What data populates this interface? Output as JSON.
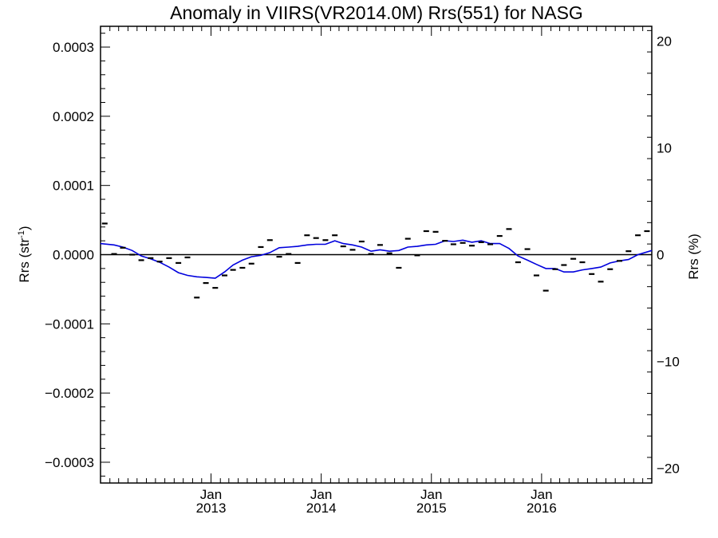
{
  "chart_data": {
    "type": "scatter",
    "title": "Anomaly in VIIRS(VR2014.0M) Rrs(551) for NASG",
    "ylabel_left_base": "Rrs (str",
    "ylabel_left_sup": "-1",
    "ylabel_left_close": ")",
    "ylabel_right": "Rrs (%)",
    "xlabel": "",
    "xlim": [
      "2012-01-01",
      "2016-12-31"
    ],
    "ylim_left": [
      -0.00033,
      0.00033
    ],
    "ylim_right": [
      -21.4,
      21.4
    ],
    "left_ticks": [
      {
        "value": 0.0003,
        "label": "0.0003"
      },
      {
        "value": 0.0002,
        "label": "0.0002"
      },
      {
        "value": 0.0001,
        "label": "0.0001"
      },
      {
        "value": 0.0,
        "label": "0.0000"
      },
      {
        "value": -0.0001,
        "label": "−0.0001"
      },
      {
        "value": -0.0002,
        "label": "−0.0002"
      },
      {
        "value": -0.0003,
        "label": "−0.0003"
      }
    ],
    "right_ticks": [
      {
        "value": 20,
        "label": "20"
      },
      {
        "value": 10,
        "label": "10"
      },
      {
        "value": 0,
        "label": "0"
      },
      {
        "value": -10,
        "label": "−10"
      },
      {
        "value": -20,
        "label": "−20"
      }
    ],
    "x_ticks": [
      {
        "date": "2013-01-01",
        "month": "Jan",
        "year": "2013"
      },
      {
        "date": "2014-01-01",
        "month": "Jan",
        "year": "2014"
      },
      {
        "date": "2015-01-01",
        "month": "Jan",
        "year": "2015"
      },
      {
        "date": "2016-01-01",
        "month": "Jan",
        "year": "2016"
      }
    ],
    "zero_line": 0,
    "series": [
      {
        "kind": "monthly-anomaly",
        "color": "#000000",
        "x": [
          "2012-01",
          "2012-02",
          "2012-03",
          "2012-04",
          "2012-05",
          "2012-06",
          "2012-07",
          "2012-08",
          "2012-09",
          "2012-10",
          "2012-11",
          "2012-12",
          "2013-01",
          "2013-02",
          "2013-03",
          "2013-04",
          "2013-05",
          "2013-06",
          "2013-07",
          "2013-08",
          "2013-09",
          "2013-10",
          "2013-11",
          "2013-12",
          "2014-01",
          "2014-02",
          "2014-03",
          "2014-04",
          "2014-05",
          "2014-06",
          "2014-07",
          "2014-08",
          "2014-09",
          "2014-10",
          "2014-11",
          "2014-12",
          "2015-01",
          "2015-02",
          "2015-03",
          "2015-04",
          "2015-05",
          "2015-06",
          "2015-07",
          "2015-08",
          "2015-09",
          "2015-10",
          "2015-11",
          "2015-12",
          "2016-01",
          "2016-02",
          "2016-03",
          "2016-04",
          "2016-05",
          "2016-06",
          "2016-07",
          "2016-08",
          "2016-09",
          "2016-10",
          "2016-11",
          "2016-12"
        ],
        "y": [
          4.5e-05,
          1e-06,
          1e-05,
          0.0,
          -8e-06,
          -5e-06,
          -1e-05,
          -5e-06,
          -1.2e-05,
          -4e-06,
          -6.2e-05,
          -4.1e-05,
          -4.8e-05,
          -3e-05,
          -2.2e-05,
          -1.9e-05,
          -1.3e-05,
          1.1e-05,
          2.1e-05,
          -3e-06,
          1e-06,
          -1.2e-05,
          2.8e-05,
          2.4e-05,
          2.1e-05,
          2.8e-05,
          1.2e-05,
          7e-06,
          1.9e-05,
          1e-06,
          1.4e-05,
          2e-06,
          -1.9e-05,
          2.3e-05,
          -1e-06,
          3.4e-05,
          3.3e-05,
          2e-05,
          1.5e-05,
          1.7e-05,
          1.3e-05,
          1.8e-05,
          1.5e-05,
          2.7e-05,
          3.7e-05,
          -1.1e-05,
          8e-06,
          -3e-05,
          -5.2e-05,
          -2.1e-05,
          -1.5e-05,
          -6e-06,
          -1.1e-05,
          -2.8e-05,
          -3.9e-05,
          -2.1e-05,
          -9e-06,
          5e-06,
          2.8e-05,
          3.4e-05
        ]
      },
      {
        "kind": "running-mean",
        "color": "#0000dd",
        "x": [
          "2012-01",
          "2012-02",
          "2012-03",
          "2012-04",
          "2012-05",
          "2012-06",
          "2012-07",
          "2012-08",
          "2012-09",
          "2012-10",
          "2012-11",
          "2012-12",
          "2013-01",
          "2013-02",
          "2013-03",
          "2013-04",
          "2013-05",
          "2013-06",
          "2013-07",
          "2013-08",
          "2013-09",
          "2013-10",
          "2013-11",
          "2013-12",
          "2014-01",
          "2014-02",
          "2014-03",
          "2014-04",
          "2014-05",
          "2014-06",
          "2014-07",
          "2014-08",
          "2014-09",
          "2014-10",
          "2014-11",
          "2014-12",
          "2015-01",
          "2015-02",
          "2015-03",
          "2015-04",
          "2015-05",
          "2015-06",
          "2015-07",
          "2015-08",
          "2015-09",
          "2015-10",
          "2015-11",
          "2015-12",
          "2016-01",
          "2016-02",
          "2016-03",
          "2016-04",
          "2016-05",
          "2016-06",
          "2016-07",
          "2016-08",
          "2016-09",
          "2016-10",
          "2016-11",
          "2016-12"
        ],
        "y": [
          1.6e-05,
          1.4e-05,
          1.1e-05,
          6e-06,
          -2e-06,
          -6e-06,
          -1.1e-05,
          -1.8e-05,
          -2.6e-05,
          -3e-05,
          -3.2e-05,
          -3.3e-05,
          -3.4e-05,
          -2.5e-05,
          -1.5e-05,
          -8e-06,
          -3e-06,
          -1e-06,
          3e-06,
          1e-05,
          1.1e-05,
          1.2e-05,
          1.4e-05,
          1.5e-05,
          1.5e-05,
          2e-05,
          1.6e-05,
          1.4e-05,
          1.1e-05,
          5e-06,
          7e-06,
          5e-06,
          6e-06,
          1.1e-05,
          1.2e-05,
          1.4e-05,
          1.5e-05,
          2e-05,
          1.9e-05,
          2.1e-05,
          1.8e-05,
          2e-05,
          1.6e-05,
          1.6e-05,
          9e-06,
          -2e-06,
          -8e-06,
          -1.4e-05,
          -2e-05,
          -2e-05,
          -2.5e-05,
          -2.5e-05,
          -2.2e-05,
          -2e-05,
          -1.8e-05,
          -1.2e-05,
          -9e-06,
          -7e-06,
          0.0,
          6e-06
        ]
      }
    ]
  }
}
